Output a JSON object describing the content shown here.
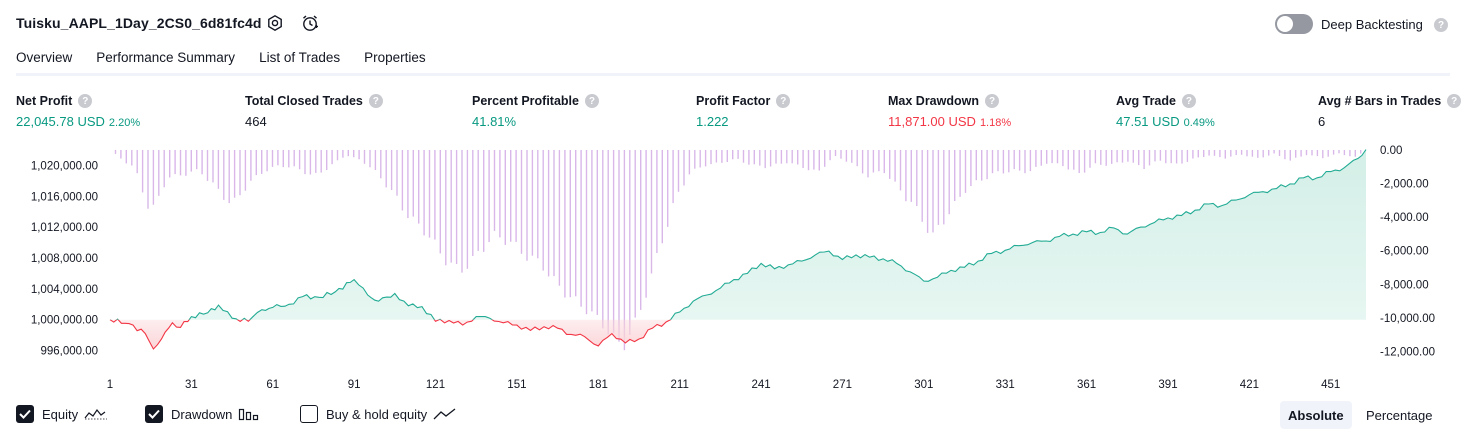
{
  "header": {
    "title": "Tuisku_AAPL_1Day_2CS0_6d81fc4d",
    "deep_backtesting_label": "Deep Backtesting",
    "deep_backtesting_enabled": false,
    "help_glyph": "?"
  },
  "tabs": [
    {
      "label": "Overview",
      "active": true
    },
    {
      "label": "Performance Summary",
      "active": false
    },
    {
      "label": "List of Trades",
      "active": false
    },
    {
      "label": "Properties",
      "active": false
    }
  ],
  "metrics": {
    "net_profit": {
      "label": "Net Profit",
      "value": "22,045.78 USD",
      "pct": "2.20%"
    },
    "total_closed_trades": {
      "label": "Total Closed Trades",
      "value": "464"
    },
    "percent_profitable": {
      "label": "Percent Profitable",
      "value": "41.81%"
    },
    "profit_factor": {
      "label": "Profit Factor",
      "value": "1.222"
    },
    "max_drawdown": {
      "label": "Max Drawdown",
      "value": "11,871.00 USD",
      "pct": "1.18%"
    },
    "avg_trade": {
      "label": "Avg Trade",
      "value": "47.51 USD",
      "pct": "0.49%"
    },
    "avg_bars": {
      "label": "Avg # Bars in Trades",
      "value": "6"
    }
  },
  "legend": {
    "equity": {
      "label": "Equity",
      "checked": true
    },
    "drawdown": {
      "label": "Drawdown",
      "checked": true
    },
    "buy_hold": {
      "label": "Buy & hold equity",
      "checked": false
    }
  },
  "view_toggle": {
    "absolute": "Absolute",
    "percentage": "Percentage",
    "selected": "Absolute"
  },
  "colors": {
    "profit": "#089981",
    "loss": "#f23645",
    "equity_fill": "#d3efe7",
    "equity_line": "#22ab94",
    "loss_fill": "#fbd5d8",
    "drawdown_bar": "#d9b8e9"
  },
  "chart_data": {
    "type": "area",
    "x_ticks": [
      1,
      31,
      61,
      91,
      121,
      151,
      181,
      211,
      241,
      271,
      301,
      331,
      361,
      391,
      421,
      451
    ],
    "x_range": [
      1,
      464
    ],
    "y_left": {
      "ticks": [
        "1,020,000.00",
        "1,016,000.00",
        "1,012,000.00",
        "1,008,000.00",
        "1,004,000.00",
        "1,000,000.00",
        "996,000.00"
      ],
      "range": [
        994000,
        1022000
      ],
      "baseline": 1000000
    },
    "y_right": {
      "ticks": [
        "0.00",
        "-2,000.00",
        "-4,000.00",
        "-6,000.00",
        "-8,000.00",
        "-10,000.00",
        "-12,000.00"
      ],
      "range": [
        -12871,
        0
      ]
    },
    "series": [
      {
        "name": "Equity",
        "x": [
          1,
          8,
          14,
          17,
          20,
          24,
          27,
          31,
          37,
          41,
          46,
          52,
          57,
          61,
          67,
          72,
          78,
          84,
          91,
          96,
          100,
          106,
          111,
          116,
          121,
          126,
          131,
          136,
          141,
          146,
          151,
          156,
          161,
          166,
          171,
          176,
          181,
          186,
          191,
          196,
          201,
          206,
          211,
          216,
          221,
          226,
          231,
          236,
          241,
          246,
          251,
          256,
          261,
          266,
          271,
          276,
          281,
          286,
          291,
          296,
          301,
          306,
          311,
          316,
          321,
          326,
          331,
          336,
          341,
          346,
          351,
          356,
          361,
          366,
          371,
          376,
          381,
          386,
          391,
          396,
          401,
          406,
          411,
          416,
          421,
          426,
          431,
          436,
          441,
          446,
          451,
          456,
          461,
          464
        ],
        "values": [
          1000000,
          999500,
          998200,
          996200,
          997500,
          999600,
          999000,
          1000400,
          1000900,
          1001900,
          1000200,
          999800,
          1001300,
          1001600,
          1002000,
          1003000,
          1002900,
          1003600,
          1005200,
          1003200,
          1002400,
          1003400,
          1001800,
          1001700,
          999800,
          999900,
          999300,
          1000400,
          1000200,
          999600,
          999300,
          998600,
          999100,
          998900,
          998100,
          997800,
          996600,
          998200,
          997000,
          997500,
          998900,
          999700,
          1001000,
          1002400,
          1003200,
          1004100,
          1005200,
          1006000,
          1007300,
          1006600,
          1007100,
          1007600,
          1008400,
          1008900,
          1007800,
          1008400,
          1008100,
          1007900,
          1007300,
          1006200,
          1005000,
          1005500,
          1006400,
          1006800,
          1007600,
          1008600,
          1009000,
          1009600,
          1010000,
          1010200,
          1010800,
          1011100,
          1011400,
          1011300,
          1011900,
          1011100,
          1012000,
          1012600,
          1013200,
          1013500,
          1014200,
          1015000,
          1014800,
          1015500,
          1016200,
          1016600,
          1017000,
          1017600,
          1018400,
          1018400,
          1019200,
          1019700,
          1020900,
          1022046
        ]
      },
      {
        "name": "Drawdown",
        "x": [
          1,
          10,
          16,
          22,
          28,
          34,
          40,
          46,
          52,
          58,
          64,
          70,
          76,
          82,
          88,
          94,
          100,
          106,
          112,
          118,
          124,
          130,
          136,
          142,
          148,
          154,
          160,
          166,
          172,
          178,
          184,
          190,
          196,
          202,
          208,
          214,
          220,
          226,
          232,
          238,
          244,
          250,
          256,
          262,
          268,
          274,
          280,
          286,
          292,
          298,
          304,
          310,
          316,
          322,
          328,
          334,
          340,
          346,
          352,
          358,
          364,
          370,
          376,
          382,
          388,
          394,
          400,
          406,
          412,
          418,
          424,
          430,
          436,
          442,
          448,
          454,
          460,
          464
        ],
        "values": [
          0,
          -1200,
          -3800,
          -1500,
          -1400,
          -1300,
          -2500,
          -3200,
          -1800,
          -1200,
          -1000,
          -1200,
          -1500,
          -900,
          -300,
          -700,
          -1600,
          -2600,
          -3800,
          -5000,
          -6800,
          -7400,
          -6100,
          -4800,
          -5500,
          -6600,
          -6900,
          -7800,
          -8700,
          -9800,
          -11000,
          -11871,
          -9500,
          -6500,
          -3800,
          -1600,
          -900,
          -700,
          -500,
          -1000,
          -1100,
          -700,
          -900,
          -1300,
          -400,
          -800,
          -1500,
          -1100,
          -2300,
          -3800,
          -5400,
          -3600,
          -2200,
          -1800,
          -1500,
          -1300,
          -1200,
          -700,
          -900,
          -1600,
          -900,
          -800,
          -600,
          -1100,
          -700,
          -900,
          -500,
          -300,
          -500,
          -300,
          -500,
          -200,
          -600,
          -300,
          -500,
          -200,
          -400,
          0
        ]
      }
    ]
  }
}
